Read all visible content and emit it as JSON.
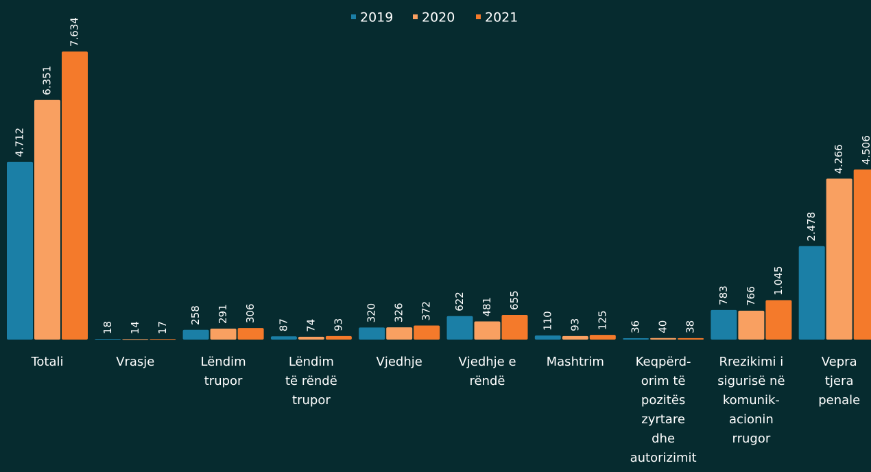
{
  "chart_data": {
    "type": "bar",
    "categories": [
      [
        "Totali"
      ],
      [
        "Vrasje"
      ],
      [
        "Lëndim",
        "trupor"
      ],
      [
        "Lëndim",
        "të rëndë",
        "trupor"
      ],
      [
        "Vjedhje"
      ],
      [
        "Vjedhje e",
        "rëndë"
      ],
      [
        "Mashtrim"
      ],
      [
        "Keqpërd-",
        "orim të",
        "pozitës",
        "zyrtare",
        "dhe",
        "autorizimit"
      ],
      [
        "Rrezikimi i",
        "sigurisë në",
        "komunik-",
        "acionin",
        "rrugor"
      ],
      [
        "Vepra",
        "tjera",
        "penale"
      ]
    ],
    "series": [
      {
        "name": "2019",
        "color": "#1b7fa6",
        "values": [
          4712,
          18,
          258,
          87,
          320,
          622,
          110,
          36,
          783,
          2478
        ],
        "value_labels": [
          "4.712",
          "18",
          "258",
          "87",
          "320",
          "622",
          "110",
          "36",
          "783",
          "2.478"
        ]
      },
      {
        "name": "2020",
        "color": "#f9a061",
        "values": [
          6351,
          14,
          291,
          74,
          326,
          481,
          93,
          40,
          766,
          4266
        ],
        "value_labels": [
          "6.351",
          "14",
          "291",
          "74",
          "326",
          "481",
          "93",
          "40",
          "766",
          "4.266"
        ]
      },
      {
        "name": "2021",
        "color": "#f47a2b",
        "values": [
          7634,
          17,
          306,
          93,
          372,
          655,
          125,
          38,
          1045,
          4506
        ],
        "value_labels": [
          "7.634",
          "17",
          "306",
          "93",
          "372",
          "655",
          "125",
          "38",
          "1.045",
          "4.506"
        ]
      }
    ],
    "ylim": [
      0,
      8000
    ],
    "legend": "top"
  }
}
